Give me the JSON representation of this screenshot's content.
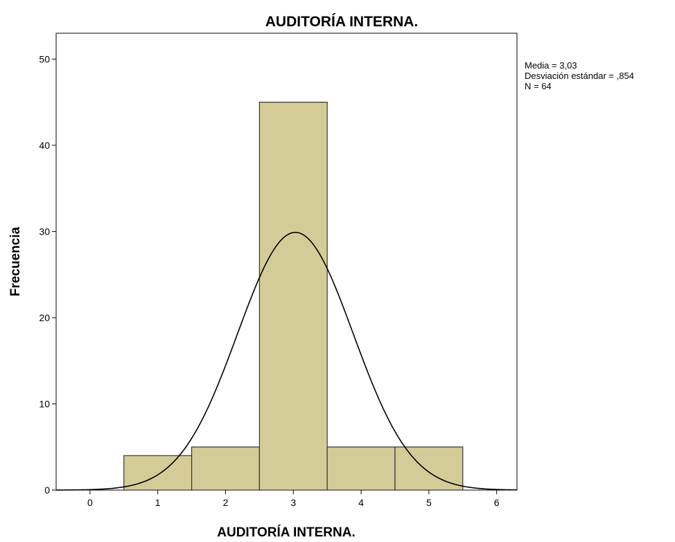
{
  "chart_data": {
    "type": "bar",
    "title": "AUDITORÍA INTERNA.",
    "xlabel": "AUDITORÍA INTERNA.",
    "ylabel": "Frecuencia",
    "categories": [
      1,
      2,
      3,
      4,
      5
    ],
    "values": [
      4,
      5,
      45,
      5,
      5
    ],
    "bin_width": 1,
    "xlim": [
      -0.5,
      6.3
    ],
    "ylim": [
      0,
      53
    ],
    "xticks": [
      "0",
      "1",
      "2",
      "3",
      "4",
      "5",
      "6"
    ],
    "yticks": [
      "0",
      "10",
      "20",
      "30",
      "40",
      "50"
    ],
    "normal_curve": {
      "mean": 3.03,
      "std": 0.854,
      "n": 64
    },
    "stats": [
      "Media = 3,03",
      "Desviación estándar = ,854",
      "N = 64"
    ],
    "grid": false,
    "colors": {
      "bar_fill": "#d4cc98",
      "bar_stroke": "#333333",
      "curve": "#000000"
    }
  }
}
